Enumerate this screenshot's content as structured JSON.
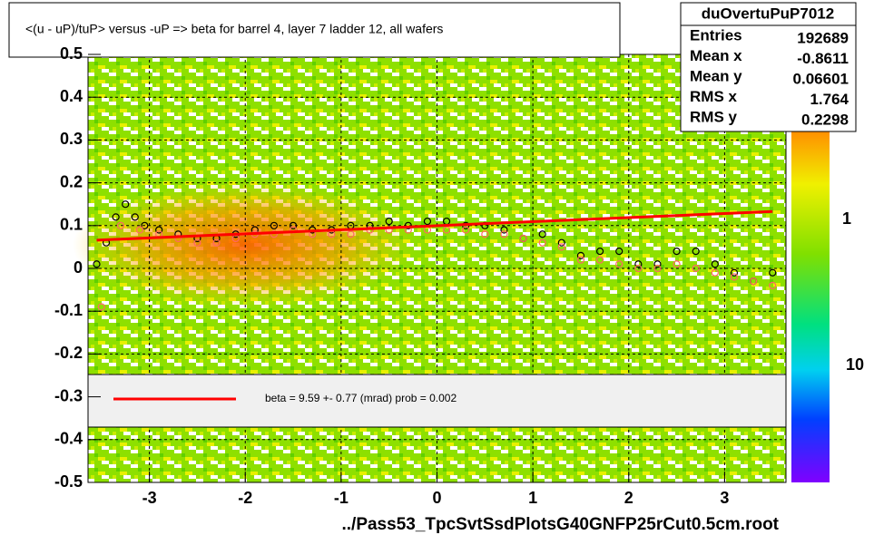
{
  "chart_data": {
    "type": "profile2d",
    "title": "<(u - uP)/tuP> versus  -uP => beta for barrel 4, layer 7 ladder 12, all wafers",
    "x_label": "../Pass53_TpcSvtSsdPlotsG40GNFP25rCut0.5cm.root",
    "xlim": [
      -3.64,
      3.64
    ],
    "ylim": [
      -0.5,
      0.5
    ],
    "xticks": [
      -3,
      -2,
      -1,
      0,
      1,
      2,
      3
    ],
    "yticks": [
      -0.5,
      -0.4,
      -0.3,
      -0.2,
      -0.1,
      0,
      0.1,
      0.2,
      0.3,
      0.4,
      0.5
    ],
    "grid": true,
    "colorbar_labels": [
      "1",
      "10"
    ],
    "stats": {
      "name": "duOvertuPuP7012",
      "rows": [
        [
          "Entries",
          "192689"
        ],
        [
          "Mean x",
          "-0.8611"
        ],
        [
          "Mean y",
          "0.06601"
        ],
        [
          "RMS x",
          "1.764"
        ],
        [
          "RMS y",
          "0.2298"
        ]
      ]
    },
    "legend_text": "beta =    9.59 +-  0.77 (mrad) prob = 0.002",
    "series": [
      {
        "name": "profile",
        "color": "#000000",
        "x": [
          -3.55,
          -3.45,
          -3.35,
          -3.25,
          -3.15,
          -3.05,
          -2.9,
          -2.7,
          -2.5,
          -2.3,
          -2.1,
          -1.9,
          -1.7,
          -1.5,
          -1.3,
          -1.1,
          -0.9,
          -0.7,
          -0.5,
          -0.3,
          -0.1,
          0.1,
          0.3,
          0.5,
          0.7,
          0.9,
          1.1,
          1.3,
          1.5,
          1.7,
          1.9,
          2.1,
          2.3,
          2.5,
          2.7,
          2.9,
          3.1,
          3.3,
          3.5
        ],
        "values": [
          0.01,
          0.06,
          0.12,
          0.15,
          0.12,
          0.1,
          0.09,
          0.08,
          0.07,
          0.07,
          0.08,
          0.09,
          0.1,
          0.1,
          0.09,
          0.09,
          0.1,
          0.1,
          0.11,
          0.1,
          0.11,
          0.11,
          0.1,
          0.1,
          0.09,
          0.07,
          0.08,
          0.06,
          0.03,
          0.04,
          0.04,
          0.01,
          0.01,
          0.04,
          0.04,
          0.01,
          -0.01,
          -0.03,
          -0.01
        ]
      },
      {
        "name": "profile-alt",
        "color": "#ff6666",
        "x": [
          -3.5,
          -3.3,
          -3.1,
          -2.9,
          -2.7,
          -2.5,
          -2.3,
          -2.1,
          -1.9,
          -1.7,
          -1.5,
          -1.3,
          -1.1,
          -0.9,
          -0.7,
          -0.5,
          -0.3,
          -0.1,
          0.1,
          0.3,
          0.5,
          0.7,
          0.9,
          1.1,
          1.3,
          1.5,
          1.7,
          1.9,
          2.1,
          2.3,
          2.5,
          2.7,
          2.9,
          3.1,
          3.3,
          3.5
        ],
        "values": [
          -0.09,
          0.1,
          0.09,
          0.08,
          0.07,
          0.06,
          0.06,
          0.07,
          0.08,
          0.08,
          0.09,
          0.08,
          0.08,
          0.08,
          0.09,
          0.09,
          0.09,
          0.09,
          0.09,
          0.09,
          0.08,
          0.08,
          0.07,
          0.06,
          0.05,
          0.02,
          0.02,
          0.01,
          0.0,
          0.0,
          0.01,
          0.0,
          -0.01,
          -0.02,
          -0.03,
          -0.04
        ]
      },
      {
        "name": "fit",
        "color": "#ff0000",
        "x": [
          -3.55,
          3.5
        ],
        "values": [
          0.066,
          0.133
        ]
      }
    ]
  }
}
